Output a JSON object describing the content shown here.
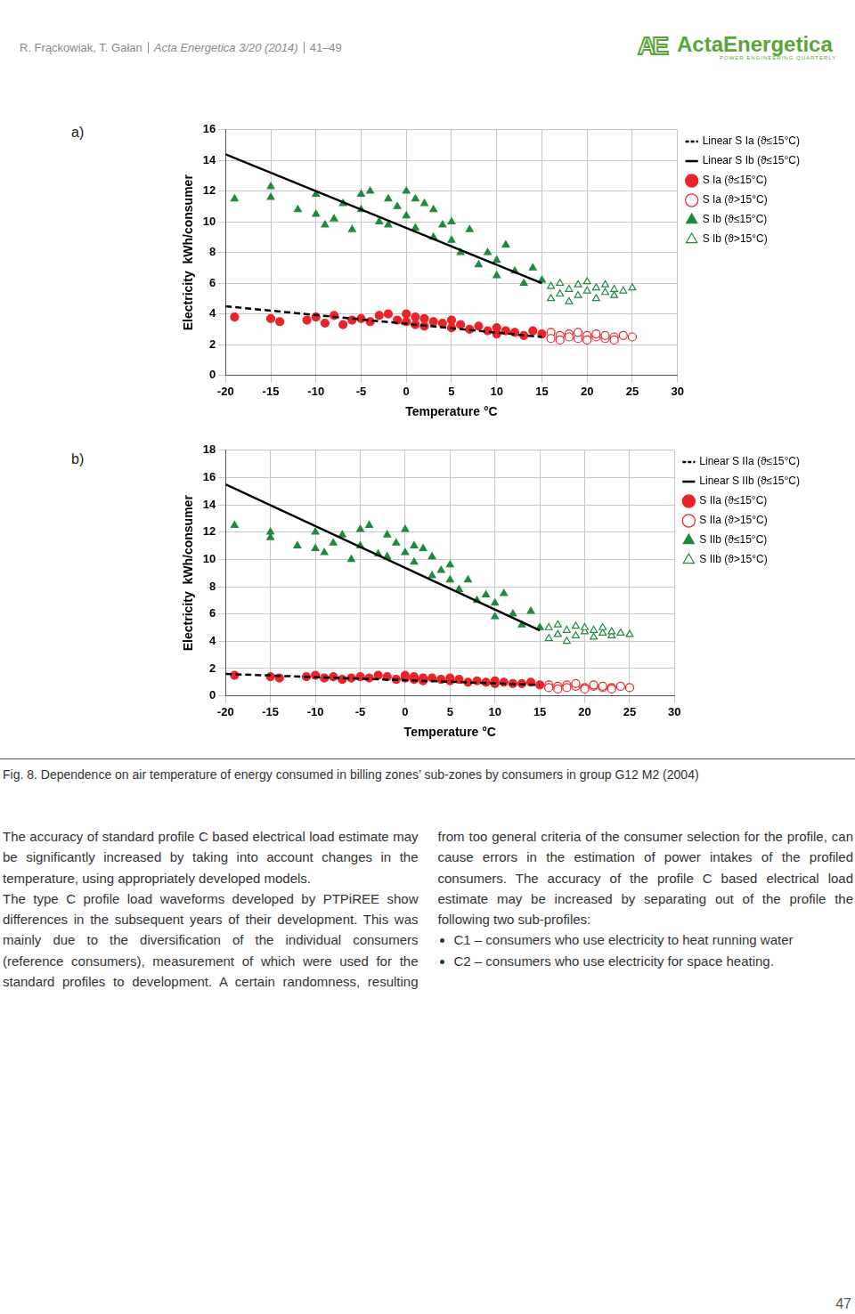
{
  "header": {
    "authors": "R. Frąckowiak, T. Gałan",
    "journal": "Acta Energetica 3/20 (2014)",
    "pages": "41–49",
    "logo": {
      "mark": "AE",
      "name": "ActaEnergetica",
      "tagline": "POWER ENGINEERING QUARTERLY"
    }
  },
  "chart_data": [
    {
      "type": "scatter",
      "panel_label": "a)",
      "x_label": "Temperature °C",
      "y_label": "Electricity  kWh/consumer",
      "xlim": [
        -20,
        30
      ],
      "xticks": [
        -20,
        -15,
        -10,
        -5,
        0,
        5,
        10,
        15,
        20,
        25,
        30
      ],
      "ylim": [
        0,
        16
      ],
      "yticks": [
        0,
        2,
        4,
        6,
        8,
        10,
        12,
        14,
        16
      ],
      "grid": true,
      "legend": "right",
      "series": [
        {
          "name": "S Ia (ϑ≤15°C)",
          "color": "#e8232a",
          "marker": "circle",
          "x": [
            -19,
            -15,
            -14,
            -11,
            -10,
            -9,
            -8,
            -7,
            -6,
            -5,
            -4,
            -3,
            -2,
            -1,
            0,
            0,
            1,
            1,
            2,
            2,
            3,
            4,
            5,
            5,
            6,
            7,
            8,
            9,
            10,
            10,
            11,
            12,
            13,
            14,
            15
          ],
          "values": [
            3.8,
            3.7,
            3.5,
            3.6,
            3.8,
            3.4,
            3.9,
            3.3,
            3.6,
            3.7,
            3.5,
            3.9,
            4.0,
            3.6,
            4.0,
            3.5,
            3.8,
            3.3,
            3.7,
            3.2,
            3.5,
            3.4,
            3.1,
            3.6,
            3.3,
            3.0,
            3.2,
            2.9,
            3.1,
            2.7,
            2.9,
            2.8,
            2.6,
            2.9,
            2.7
          ]
        },
        {
          "name": "S Ia (ϑ>15°C)",
          "color": "#e8232a",
          "marker": "circle_open",
          "x": [
            16,
            16,
            17,
            17,
            18,
            18,
            19,
            19,
            20,
            20,
            21,
            21,
            22,
            22,
            23,
            23,
            24,
            25
          ],
          "values": [
            2.8,
            2.4,
            2.6,
            2.3,
            2.7,
            2.5,
            2.4,
            2.8,
            2.6,
            2.3,
            2.5,
            2.7,
            2.4,
            2.6,
            2.5,
            2.3,
            2.6,
            2.5
          ]
        },
        {
          "name": "S Ib (ϑ≤15°C)",
          "color": "#1e8a3c",
          "marker": "triangle",
          "x": [
            -19,
            -15,
            -15,
            -12,
            -10,
            -10,
            -9,
            -8,
            -7,
            -6,
            -5,
            -5,
            -4,
            -3,
            -2,
            -2,
            -1,
            0,
            0,
            1,
            1,
            2,
            3,
            3,
            4,
            5,
            5,
            6,
            7,
            8,
            9,
            10,
            10,
            11,
            12,
            13,
            14,
            15
          ],
          "values": [
            11.5,
            12.3,
            11.6,
            10.8,
            11.8,
            10.5,
            9.8,
            10.2,
            11.2,
            9.5,
            11.8,
            10.8,
            12.0,
            10.0,
            11.5,
            9.8,
            11.0,
            12.0,
            10.4,
            11.5,
            9.6,
            11.2,
            10.8,
            9.0,
            9.8,
            8.8,
            10.0,
            8.0,
            9.5,
            7.2,
            8.0,
            7.5,
            6.5,
            8.5,
            6.8,
            6.0,
            7.0,
            6.2
          ]
        },
        {
          "name": "S Ib (ϑ>15°C)",
          "color": "#1e8a3c",
          "marker": "triangle_open",
          "x": [
            16,
            16,
            17,
            17,
            18,
            18,
            19,
            19,
            20,
            20,
            21,
            21,
            22,
            22,
            23,
            23,
            24,
            25
          ],
          "values": [
            5.8,
            5.0,
            6.0,
            5.3,
            5.6,
            4.8,
            5.9,
            5.2,
            5.5,
            6.1,
            5.0,
            5.7,
            5.4,
            5.9,
            5.2,
            5.6,
            5.5,
            5.7
          ]
        },
        {
          "name": "Linear S Ia (ϑ≤15°C)",
          "color": "#000000",
          "type": "line",
          "line_style": "dashed",
          "x": [
            -20,
            15
          ],
          "values": [
            4.5,
            2.5
          ]
        },
        {
          "name": "Linear S Ib (ϑ≤15°C)",
          "color": "#000000",
          "type": "line",
          "line_style": "solid",
          "x": [
            -20,
            15
          ],
          "values": [
            14.4,
            6.0
          ]
        }
      ]
    },
    {
      "type": "scatter",
      "panel_label": "b)",
      "x_label": "Temperature °C",
      "y_label": "Electricity  kWh/consumer",
      "xlim": [
        -20,
        30
      ],
      "xticks": [
        -20,
        -15,
        -10,
        -5,
        0,
        5,
        10,
        15,
        20,
        25,
        30
      ],
      "ylim": [
        0,
        18
      ],
      "yticks": [
        0,
        2,
        4,
        6,
        8,
        10,
        12,
        14,
        16,
        18
      ],
      "grid": true,
      "legend": "right",
      "series": [
        {
          "name": "S IIa (ϑ≤15°C)",
          "color": "#e8232a",
          "marker": "circle",
          "x": [
            -19,
            -15,
            -14,
            -11,
            -10,
            -9,
            -8,
            -7,
            -6,
            -5,
            -4,
            -3,
            -2,
            -1,
            0,
            0,
            1,
            1,
            2,
            2,
            3,
            4,
            5,
            5,
            6,
            7,
            8,
            9,
            10,
            10,
            11,
            12,
            13,
            14,
            15
          ],
          "values": [
            1.5,
            1.4,
            1.3,
            1.4,
            1.5,
            1.3,
            1.4,
            1.2,
            1.3,
            1.4,
            1.3,
            1.5,
            1.4,
            1.2,
            1.5,
            1.3,
            1.4,
            1.2,
            1.3,
            1.1,
            1.3,
            1.2,
            1.1,
            1.3,
            1.2,
            1.0,
            1.1,
            1.0,
            1.1,
            0.9,
            1.0,
            0.9,
            0.9,
            1.0,
            0.8
          ]
        },
        {
          "name": "S IIa (ϑ>15°C)",
          "color": "#e8232a",
          "marker": "circle_open",
          "x": [
            16,
            16,
            17,
            17,
            18,
            18,
            19,
            19,
            20,
            20,
            21,
            21,
            22,
            22,
            23,
            23,
            24,
            25
          ],
          "values": [
            0.8,
            0.6,
            0.7,
            0.5,
            0.8,
            0.6,
            0.7,
            0.9,
            0.6,
            0.5,
            0.7,
            0.8,
            0.6,
            0.7,
            0.6,
            0.5,
            0.7,
            0.6
          ]
        },
        {
          "name": "S IIb (ϑ≤15°C)",
          "color": "#1e8a3c",
          "marker": "triangle",
          "x": [
            -19,
            -15,
            -15,
            -12,
            -10,
            -10,
            -9,
            -8,
            -7,
            -6,
            -5,
            -5,
            -4,
            -3,
            -2,
            -2,
            -1,
            0,
            0,
            1,
            1,
            2,
            3,
            3,
            4,
            5,
            5,
            6,
            7,
            8,
            9,
            10,
            10,
            11,
            12,
            13,
            14,
            15
          ],
          "values": [
            12.5,
            12.0,
            11.6,
            11.0,
            12.0,
            10.8,
            10.5,
            11.2,
            11.8,
            10.0,
            12.2,
            11.0,
            12.5,
            10.4,
            11.8,
            10.2,
            11.2,
            12.2,
            10.5,
            11.0,
            9.8,
            10.8,
            10.2,
            8.8,
            9.2,
            8.5,
            9.6,
            7.8,
            8.5,
            7.0,
            7.4,
            6.8,
            5.8,
            7.5,
            6.0,
            5.2,
            6.2,
            5.0
          ]
        },
        {
          "name": "S IIb (ϑ>15°C)",
          "color": "#1e8a3c",
          "marker": "triangle_open",
          "x": [
            16,
            16,
            17,
            17,
            18,
            18,
            19,
            19,
            20,
            20,
            21,
            21,
            22,
            22,
            23,
            23,
            24,
            25
          ],
          "values": [
            5.0,
            4.2,
            5.2,
            4.5,
            4.8,
            4.0,
            5.1,
            4.4,
            4.7,
            5.0,
            4.3,
            4.8,
            4.6,
            5.0,
            4.4,
            4.7,
            4.6,
            4.5
          ]
        },
        {
          "name": "Linear S IIa (ϑ≤15°C)",
          "color": "#000000",
          "type": "line",
          "line_style": "dashed",
          "x": [
            -20,
            15
          ],
          "values": [
            1.6,
            0.8
          ]
        },
        {
          "name": "Linear S IIb (ϑ≤15°C)",
          "color": "#000000",
          "type": "line",
          "line_style": "solid",
          "x": [
            -20,
            15
          ],
          "values": [
            15.5,
            4.8
          ]
        }
      ]
    }
  ],
  "caption": "Fig. 8. Dependence on air temperature of energy consumed in billing zones’ sub-zones by consumers in group G12 M2 (2004)",
  "body": {
    "paragraphs": [
      "The accuracy of standard profile C based electrical load estimate may be significantly increased by taking into account changes in the temperature, using appropriately developed models.",
      "The type C profile load waveforms developed by PTPiREE show differences in the subsequent years of their development. This was mainly due to the diversification of the individual consumers (reference consumers), measurement of which were used for the standard profiles to development. A certain randomness, resulting from too general criteria of the consumer selection for the profile, can cause errors in the estimation of power intakes of the profiled consumers. The accuracy of the profile C based electrical load estimate may be increased by separating out of the profile the following two sub-profiles:"
    ],
    "bullets": [
      "C1 – consumers who use electricity to heat running water",
      "C2 – consumers who use electricity for space heating."
    ]
  },
  "page_number": "47"
}
